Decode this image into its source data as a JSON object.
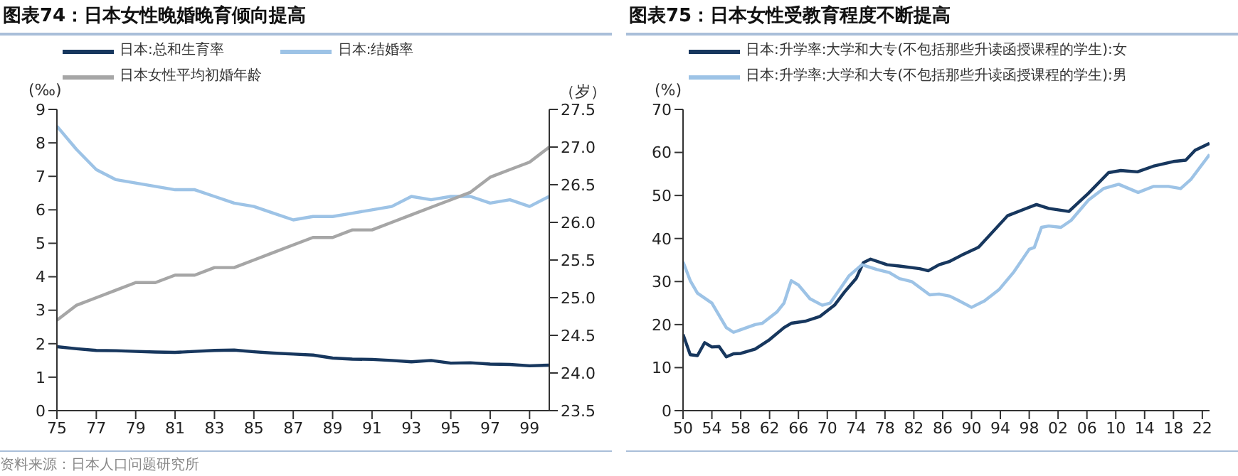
{
  "chart_data": [
    {
      "type": "line",
      "title": "图表74：日本女性晚婚晚育倾向提高",
      "ylabel": "(‰)",
      "y2label": "（岁）",
      "legend": "top",
      "annotations": [
        "资料来源：日本人口问题研究所"
      ],
      "x": [
        75,
        76,
        77,
        78,
        79,
        80,
        81,
        82,
        83,
        84,
        85,
        86,
        87,
        88,
        89,
        90,
        91,
        92,
        93,
        94,
        95,
        96,
        97,
        98,
        99,
        100
      ],
      "xlim": [
        75,
        100
      ],
      "xticks": [
        75,
        77,
        79,
        81,
        83,
        85,
        87,
        89,
        91,
        93,
        95,
        97,
        99
      ],
      "ylim": [
        0,
        9
      ],
      "yticks": [
        0,
        1,
        2,
        3,
        4,
        5,
        6,
        7,
        8,
        9
      ],
      "y2lim": [
        23.5,
        27.5
      ],
      "y2ticks": [
        23.5,
        {
          "value": 24,
          "label": "24.0"
        },
        24.5,
        {
          "value": 25,
          "label": "25.0"
        },
        25.5,
        {
          "value": 26,
          "label": "26.0"
        },
        26.5,
        {
          "value": 27,
          "label": "27.0"
        },
        27.5
      ],
      "series": [
        {
          "name": "日本:总和生育率",
          "color": "#17375e",
          "values": [
            1.91,
            1.85,
            1.8,
            1.79,
            1.77,
            1.75,
            1.74,
            1.77,
            1.8,
            1.81,
            1.76,
            1.72,
            1.69,
            1.66,
            1.57,
            1.54,
            1.53,
            1.5,
            1.46,
            1.5,
            1.42,
            1.43,
            1.39,
            1.38,
            1.34,
            1.36
          ]
        },
        {
          "name": "日本:结婚率",
          "color": "#9dc3e6",
          "values": [
            8.5,
            7.8,
            7.2,
            6.9,
            6.8,
            6.7,
            6.6,
            6.6,
            6.4,
            6.2,
            6.1,
            5.9,
            5.7,
            5.8,
            5.8,
            5.9,
            6.0,
            6.1,
            6.4,
            6.3,
            6.4,
            6.4,
            6.2,
            6.3,
            6.1,
            6.4
          ]
        },
        {
          "name": "日本女性平均初婚年龄",
          "color": "#a6a6a6",
          "axis": "y2",
          "values": [
            24.7,
            24.9,
            25.0,
            25.1,
            25.2,
            25.2,
            25.3,
            25.3,
            25.4,
            25.4,
            25.5,
            25.6,
            25.7,
            25.8,
            25.8,
            25.9,
            25.9,
            26.0,
            26.1,
            26.2,
            26.3,
            26.4,
            26.6,
            26.7,
            26.8,
            27.0
          ]
        }
      ]
    },
    {
      "type": "line",
      "title": "图表75：日本女性受教育程度不断提高",
      "ylabel": "(%)",
      "legend": "top",
      "xlim": [
        1950,
        2023
      ],
      "xticks": [
        {
          "value": 1950,
          "label": "50"
        },
        {
          "value": 1954,
          "label": "54"
        },
        {
          "value": 1958,
          "label": "58"
        },
        {
          "value": 1962,
          "label": "62"
        },
        {
          "value": 1966,
          "label": "66"
        },
        {
          "value": 1970,
          "label": "70"
        },
        {
          "value": 1974,
          "label": "74"
        },
        {
          "value": 1978,
          "label": "78"
        },
        {
          "value": 1982,
          "label": "82"
        },
        {
          "value": 1986,
          "label": "86"
        },
        {
          "value": 1990,
          "label": "90"
        },
        {
          "value": 1994,
          "label": "94"
        },
        {
          "value": 1998,
          "label": "98"
        },
        {
          "value": 2002,
          "label": "02"
        },
        {
          "value": 2006,
          "label": "06"
        },
        {
          "value": 2010,
          "label": "10"
        },
        {
          "value": 2014,
          "label": "14"
        },
        {
          "value": 2018,
          "label": "18"
        },
        {
          "value": 2022,
          "label": "22"
        }
      ],
      "ylim": [
        0,
        70
      ],
      "yticks": [
        0,
        10,
        20,
        30,
        40,
        50,
        60,
        70
      ],
      "series": [
        {
          "name": "日本:升学率:大学和大专(不包括那些升读函授课程的学生):女",
          "color": "#17375e",
          "x": [
            1950,
            1951,
            1952,
            1953,
            1954,
            1955,
            1956,
            1957,
            1958,
            1960,
            1962,
            1964,
            1965,
            1967,
            1969,
            1971,
            1972.4,
            1974,
            1975,
            1976,
            1978.3,
            1980,
            1982.8,
            1984,
            1985.5,
            1987,
            1988.6,
            1990.4,
            1991,
            1995,
            1997.3,
            1999,
            2000.7,
            2003.5,
            2006.2,
            2009,
            2010.7,
            2013,
            2015.2,
            2018,
            2019.7,
            2021,
            2023
          ],
          "values": [
            17.7,
            13,
            12.8,
            15.8,
            14.8,
            14.9,
            12.5,
            13.2,
            13.3,
            14.3,
            16.5,
            19.3,
            20.3,
            20.8,
            21.9,
            24.5,
            27.6,
            30.7,
            34.4,
            35.2,
            33.9,
            33.6,
            33,
            32.5,
            33.9,
            34.7,
            36.1,
            37.5,
            38,
            45.3,
            46.8,
            47.9,
            47,
            46.3,
            50.5,
            55.3,
            55.8,
            55.5,
            56.8,
            57.9,
            58.2,
            60.5,
            62.1
          ]
        },
        {
          "name": "日本:升学率:大学和大专(不包括那些升读函授课程的学生):男",
          "color": "#9dc3e6",
          "x": [
            1950,
            1951,
            1952,
            1954,
            1956,
            1957,
            1958,
            1960,
            1961,
            1963,
            1964,
            1965,
            1966,
            1967.6,
            1969.3,
            1970.4,
            1971.7,
            1973,
            1974.8,
            1976.9,
            1978.6,
            1980,
            1981.7,
            1984.2,
            1985.5,
            1987,
            1988.3,
            1990,
            1991.8,
            1993.8,
            1995.9,
            1998,
            1998.7,
            1999.7,
            2000.7,
            2002.4,
            2003.8,
            2006.2,
            2008.3,
            2010.4,
            2013.1,
            2015.2,
            2017.3,
            2019,
            2020.4,
            2023
          ],
          "values": [
            34.6,
            30.2,
            27.3,
            25,
            19.3,
            18.2,
            18.8,
            20,
            20.3,
            22.9,
            25,
            30.2,
            29.2,
            26,
            24.5,
            25,
            28.1,
            31.3,
            33.9,
            32.8,
            32.1,
            30.7,
            30,
            26.9,
            27.1,
            26.6,
            25.5,
            24,
            25.5,
            28.1,
            32.3,
            37.5,
            37.9,
            42.6,
            42.9,
            42.6,
            44.2,
            48.9,
            51.6,
            52.6,
            50.7,
            52.1,
            52.1,
            51.6,
            53.7,
            59.5
          ]
        }
      ]
    }
  ]
}
